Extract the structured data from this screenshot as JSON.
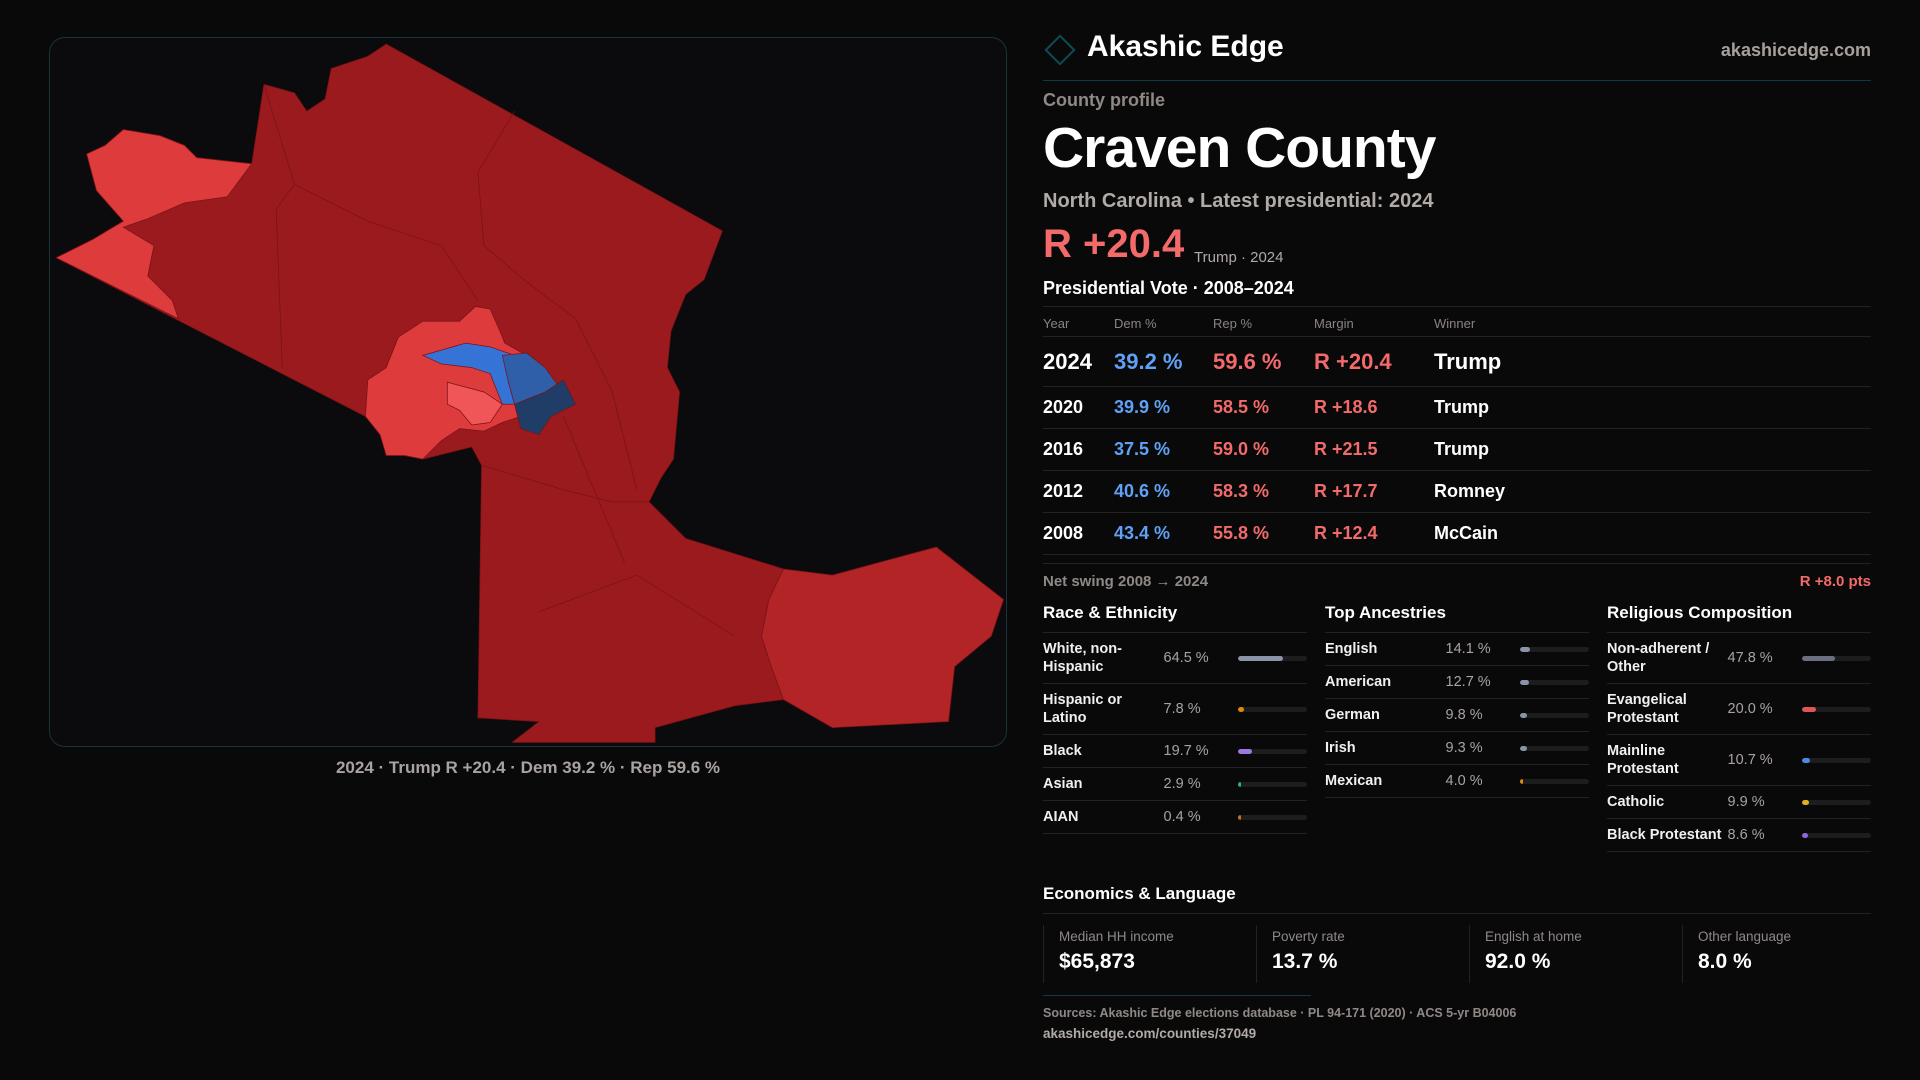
{
  "brand": {
    "name": "Akashic Edge",
    "site": "akashicedge.com"
  },
  "profile": {
    "eyebrow": "County profile",
    "title": "Craven County",
    "subtitle": "North Carolina • Latest presidential: 2024",
    "margin": "R +20.4",
    "margin_note": "Trump · 2024"
  },
  "map": {
    "caption": "2024 · Trump R +20.4 · Dem 39.2 % · Rep 59.6 %",
    "colors": {
      "strong_r": "#9a1a1e",
      "lean_r": "#de3b3d",
      "mid_r": "#b22426",
      "pink": "#f05558",
      "blue": "#3574d6",
      "mid_blue": "#2f5fa8",
      "navy": "#1f3d66"
    }
  },
  "votes": {
    "title": "Presidential Vote · 2008–2024",
    "headers": [
      "Year",
      "Dem %",
      "Rep %",
      "Margin",
      "Winner"
    ],
    "rows": [
      {
        "year": "2024",
        "dem": "39.2 %",
        "rep": "59.6 %",
        "margin": "R +20.4",
        "winner": "Trump"
      },
      {
        "year": "2020",
        "dem": "39.9 %",
        "rep": "58.5 %",
        "margin": "R +18.6",
        "winner": "Trump"
      },
      {
        "year": "2016",
        "dem": "37.5 %",
        "rep": "59.0 %",
        "margin": "R +21.5",
        "winner": "Trump"
      },
      {
        "year": "2012",
        "dem": "40.6 %",
        "rep": "58.3 %",
        "margin": "R +17.7",
        "winner": "Romney"
      },
      {
        "year": "2008",
        "dem": "43.4 %",
        "rep": "55.8 %",
        "margin": "R +12.4",
        "winner": "McCain"
      }
    ],
    "swing_label": "Net swing 2008 → 2024",
    "swing_value": "R +8.0 pts"
  },
  "race": {
    "title": "Race & Ethnicity",
    "items": [
      {
        "label": "White, non-Hispanic",
        "value": "64.5 %",
        "pct": 64.5,
        "color": "#8a93a8"
      },
      {
        "label": "Hispanic or Latino",
        "value": "7.8 %",
        "pct": 7.8,
        "color": "#e08a00"
      },
      {
        "label": "Black",
        "value": "19.7 %",
        "pct": 19.7,
        "color": "#9a7ae0"
      },
      {
        "label": "Asian",
        "value": "2.9 %",
        "pct": 2.9,
        "color": "#2ab08a"
      },
      {
        "label": "AIAN",
        "value": "0.4 %",
        "pct": 0.4,
        "color": "#d0701a"
      }
    ]
  },
  "ancestry": {
    "title": "Top Ancestries",
    "items": [
      {
        "label": "English",
        "value": "14.1 %",
        "pct": 14.1,
        "color": "#8a93a8"
      },
      {
        "label": "American",
        "value": "12.7 %",
        "pct": 12.7,
        "color": "#8a93a8"
      },
      {
        "label": "German",
        "value": "9.8 %",
        "pct": 9.8,
        "color": "#8a93a8"
      },
      {
        "label": "Irish",
        "value": "9.3 %",
        "pct": 9.3,
        "color": "#8a93a8"
      },
      {
        "label": "Mexican",
        "value": "4.0 %",
        "pct": 4.0,
        "color": "#e0900a"
      }
    ]
  },
  "religion": {
    "title": "Religious Composition",
    "items": [
      {
        "label": "Non-adherent / Other",
        "value": "47.8 %",
        "pct": 47.8,
        "color": "#6b7080"
      },
      {
        "label": "Evangelical Protestant",
        "value": "20.0 %",
        "pct": 20.0,
        "color": "#e05555"
      },
      {
        "label": "Mainline Protestant",
        "value": "10.7 %",
        "pct": 10.7,
        "color": "#4a8ae0"
      },
      {
        "label": "Catholic",
        "value": "9.9 %",
        "pct": 9.9,
        "color": "#e0b020"
      },
      {
        "label": "Black Protestant",
        "value": "8.6 %",
        "pct": 8.6,
        "color": "#8a6ae0"
      }
    ]
  },
  "econ": {
    "title": "Economics & Language",
    "cards": [
      {
        "label": "Median HH income",
        "value": "$65,873"
      },
      {
        "label": "Poverty rate",
        "value": "13.7 %"
      },
      {
        "label": "English at home",
        "value": "92.0 %"
      },
      {
        "label": "Other language",
        "value": "8.0 %"
      }
    ]
  },
  "footer": {
    "sources": "Sources: Akashic Edge elections database · PL 94-171 (2020) · ACS 5-yr B04006",
    "url": "akashicedge.com/counties/37049"
  }
}
